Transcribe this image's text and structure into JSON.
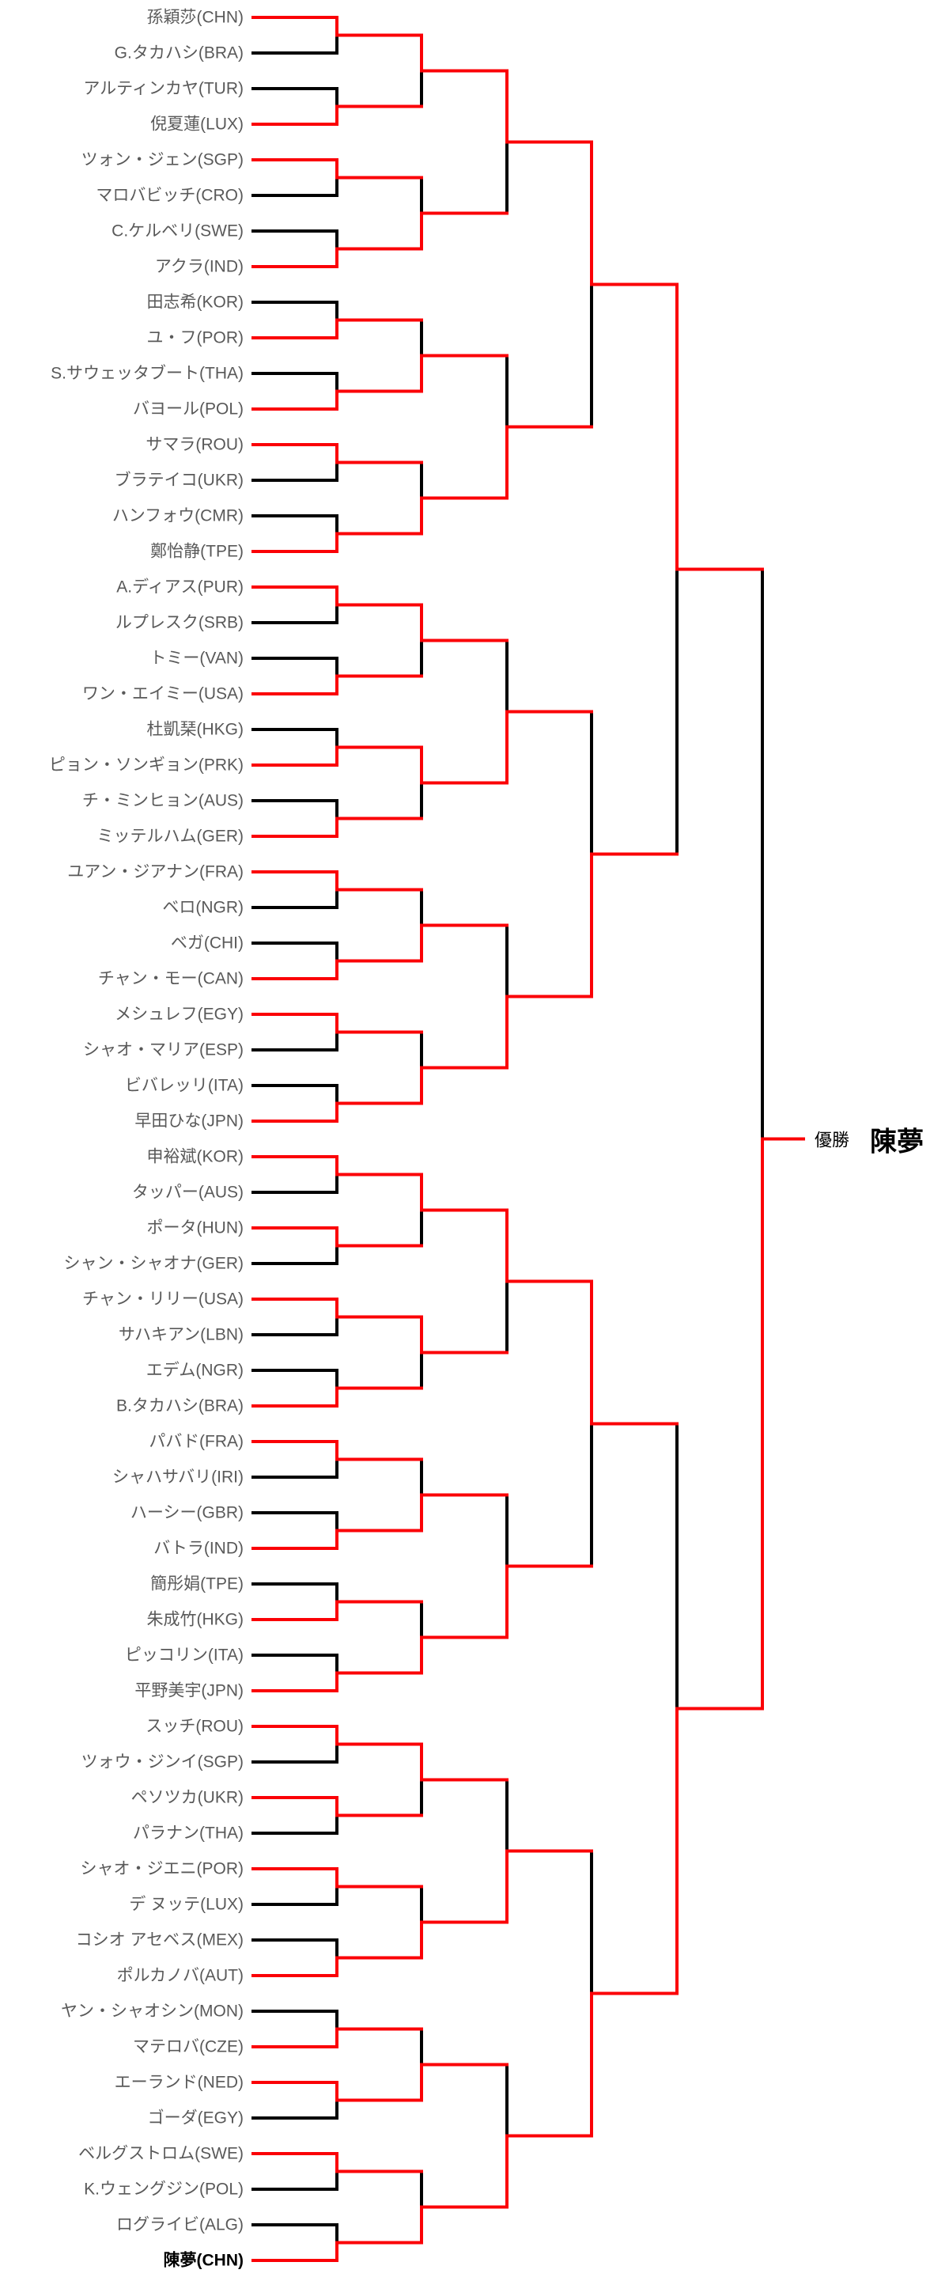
{
  "bracket": {
    "players": [
      "孫穎莎(CHN)",
      "G.タカハシ(BRA)",
      "アルティンカヤ(TUR)",
      "倪夏蓮(LUX)",
      "ツォン・ジェン(SGP)",
      "マロバビッチ(CRO)",
      "C.ケルベリ(SWE)",
      "アクラ(IND)",
      "田志希(KOR)",
      "ユ・フ(POR)",
      "S.サウェッタブート(THA)",
      "バヨール(POL)",
      "サマラ(ROU)",
      "ブラテイコ(UKR)",
      "ハンフォウ(CMR)",
      "鄭怡静(TPE)",
      "A.ディアス(PUR)",
      "ルプレスク(SRB)",
      "トミー(VAN)",
      "ワン・エイミー(USA)",
      "杜凱琹(HKG)",
      "ピョン・ソンギョン(PRK)",
      "チ・ミンヒョン(AUS)",
      "ミッテルハム(GER)",
      "ユアン・ジアナン(FRA)",
      "ベロ(NGR)",
      "ベガ(CHI)",
      "チャン・モー(CAN)",
      "メシュレフ(EGY)",
      "シャオ・マリア(ESP)",
      "ビバレッリ(ITA)",
      "早田ひな(JPN)",
      "申裕斌(KOR)",
      "タッパー(AUS)",
      "ポータ(HUN)",
      "シャン・シャオナ(GER)",
      "チャン・リリー(USA)",
      "サハキアン(LBN)",
      "エデム(NGR)",
      "B.タカハシ(BRA)",
      "パバド(FRA)",
      "シャハサバリ(IRI)",
      "ハーシー(GBR)",
      "バトラ(IND)",
      "簡彤娟(TPE)",
      "朱成竹(HKG)",
      "ピッコリン(ITA)",
      "平野美宇(JPN)",
      "スッチ(ROU)",
      "ツォウ・ジンイ(SGP)",
      "ペソツカ(UKR)",
      "パラナン(THA)",
      "シャオ・ジエニ(POR)",
      "デ ヌッテ(LUX)",
      "コシオ アセベス(MEX)",
      "ポルカノバ(AUT)",
      "ヤン・シャオシン(MON)",
      "マテロバ(CZE)",
      "エーランド(NED)",
      "ゴーダ(EGY)",
      "ベルグストロム(SWE)",
      "K.ウェングジン(POL)",
      "ログライビ(ALG)",
      "陳夢(CHN)"
    ],
    "round_winners": {
      "round_of_64": [
        0,
        3,
        4,
        7,
        9,
        11,
        12,
        15,
        16,
        19,
        21,
        23,
        24,
        27,
        28,
        31,
        32,
        34,
        36,
        39,
        40,
        43,
        45,
        47,
        48,
        50,
        52,
        55,
        57,
        58,
        60,
        63
      ],
      "round_of_32": [
        0,
        7,
        11,
        15,
        16,
        21,
        27,
        31,
        32,
        36,
        43,
        47,
        48,
        55,
        58,
        63
      ],
      "round_of_16": [
        0,
        15,
        21,
        31,
        32,
        47,
        55,
        63
      ],
      "quarterfinals": [
        0,
        31,
        32,
        63
      ],
      "semifinals": [
        0,
        63
      ],
      "final": [
        63
      ]
    },
    "champion": {
      "label": "優勝",
      "name": "陳夢"
    }
  },
  "colors": {
    "winner_path": "#fb0006",
    "eliminated": "#000000",
    "player_text": "#595959",
    "champion_seed_text": "#000000"
  }
}
